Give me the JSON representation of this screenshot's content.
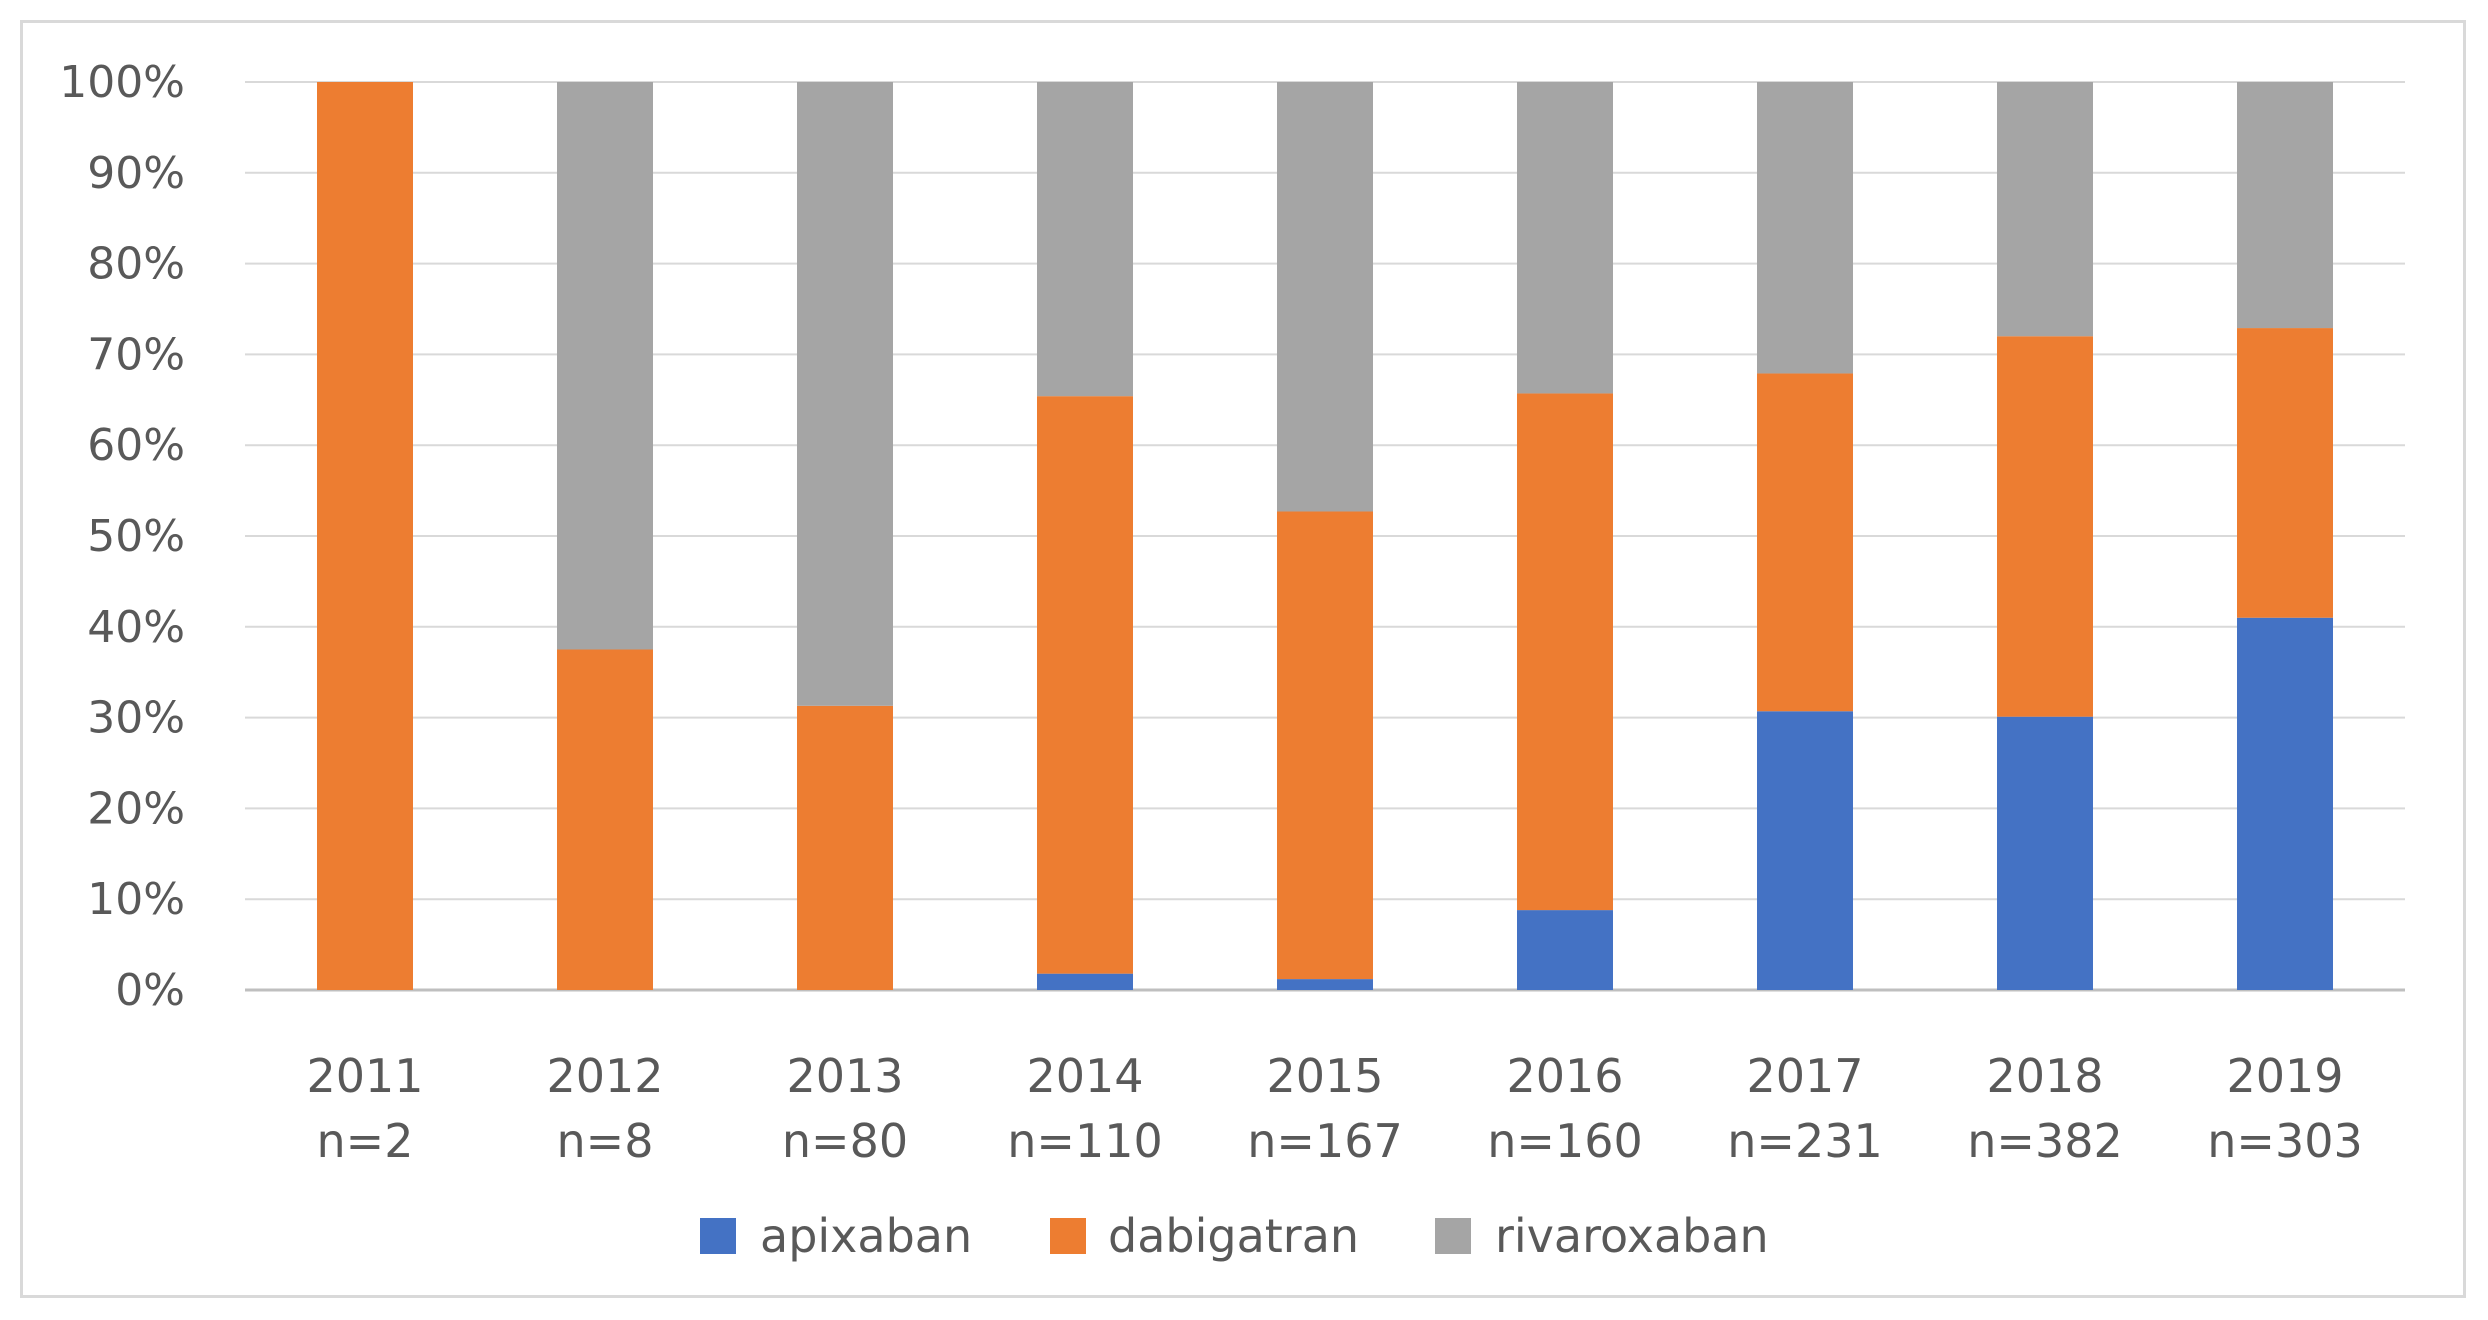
{
  "chart_data": {
    "type": "bar",
    "stacked": true,
    "percent": true,
    "title": "",
    "xlabel": "",
    "ylabel": "",
    "ylim": [
      0,
      100
    ],
    "y_ticks": [
      "0%",
      "10%",
      "20%",
      "30%",
      "40%",
      "50%",
      "60%",
      "70%",
      "80%",
      "90%",
      "100%"
    ],
    "grid": true,
    "legend_position": "bottom",
    "categories": [
      {
        "year": "2011",
        "n": "n=2"
      },
      {
        "year": "2012",
        "n": "n=8"
      },
      {
        "year": "2013",
        "n": "n=80"
      },
      {
        "year": "2014",
        "n": "n=110"
      },
      {
        "year": "2015",
        "n": "n=167"
      },
      {
        "year": "2016",
        "n": "n=160"
      },
      {
        "year": "2017",
        "n": "n=231"
      },
      {
        "year": "2018",
        "n": "n=382"
      },
      {
        "year": "2019",
        "n": "n=303"
      }
    ],
    "series": [
      {
        "name": "apixaban",
        "color": "#4472c4",
        "values": [
          0,
          0,
          0,
          1.8,
          1.2,
          8.8,
          30.7,
          30.1,
          41.0
        ]
      },
      {
        "name": "dabigatran",
        "color": "#ed7d31",
        "values": [
          100,
          37.5,
          31.3,
          63.6,
          51.5,
          56.9,
          37.2,
          41.9,
          31.9
        ]
      },
      {
        "name": "rivaroxaban",
        "color": "#a5a5a5",
        "values": [
          0,
          62.5,
          68.7,
          34.6,
          47.3,
          34.3,
          32.1,
          28.0,
          27.1
        ]
      }
    ]
  }
}
